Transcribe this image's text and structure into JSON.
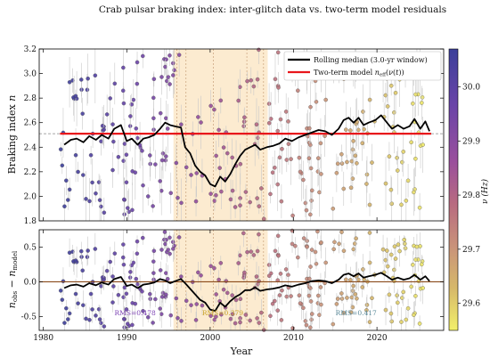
{
  "chart_data": {
    "type": "scatter",
    "title": "Crab pulsar braking index: inter-glitch data vs. two-term model residuals",
    "xlabel": "Year",
    "xlim": [
      1979.5,
      2028
    ],
    "xticks": [
      1980,
      1990,
      2000,
      2010,
      2020
    ],
    "shaded_interval": [
      1995.6,
      2006.9
    ],
    "glitch_lines": [
      1996.0,
      1997.1,
      2000.4,
      2004.4,
      2006.4
    ],
    "top_panel": {
      "ylabel": "Braking index n",
      "ylim": [
        1.8,
        3.2
      ],
      "yticks": [
        1.8,
        2.0,
        2.2,
        2.4,
        2.6,
        2.8,
        3.0,
        3.2
      ],
      "reference_line": 2.51,
      "model_line": 2.51,
      "legend": [
        {
          "label": "Rolling median (3.0-yr window)",
          "color": "#000000"
        },
        {
          "label": "Two-term model n_eff(ν(t))",
          "color": "#e8161b"
        }
      ],
      "rolling_median": [
        [
          1982.5,
          2.42
        ],
        [
          1983.3,
          2.46
        ],
        [
          1984.0,
          2.47
        ],
        [
          1984.8,
          2.44
        ],
        [
          1985.5,
          2.49
        ],
        [
          1986.3,
          2.46
        ],
        [
          1987.0,
          2.5
        ],
        [
          1987.8,
          2.47
        ],
        [
          1988.5,
          2.55
        ],
        [
          1989.3,
          2.58
        ],
        [
          1990.0,
          2.45
        ],
        [
          1990.6,
          2.47
        ],
        [
          1991.3,
          2.42
        ],
        [
          1992.0,
          2.47
        ],
        [
          1992.6,
          2.48
        ],
        [
          1993.3,
          2.5
        ],
        [
          1994.0,
          2.55
        ],
        [
          1994.6,
          2.6
        ],
        [
          1995.2,
          2.58
        ],
        [
          1995.8,
          2.57
        ],
        [
          1996.5,
          2.56
        ],
        [
          1997.0,
          2.4
        ],
        [
          1997.6,
          2.35
        ],
        [
          1998.2,
          2.25
        ],
        [
          1998.8,
          2.2
        ],
        [
          1999.4,
          2.17
        ],
        [
          2000.0,
          2.1
        ],
        [
          2000.6,
          2.08
        ],
        [
          2001.2,
          2.16
        ],
        [
          2001.8,
          2.12
        ],
        [
          2002.4,
          2.18
        ],
        [
          2003.0,
          2.26
        ],
        [
          2003.6,
          2.33
        ],
        [
          2004.2,
          2.38
        ],
        [
          2004.8,
          2.4
        ],
        [
          2005.4,
          2.42
        ],
        [
          2006.0,
          2.38
        ],
        [
          2006.8,
          2.4
        ],
        [
          2007.5,
          2.41
        ],
        [
          2008.3,
          2.43
        ],
        [
          2009.0,
          2.47
        ],
        [
          2009.8,
          2.45
        ],
        [
          2010.6,
          2.48
        ],
        [
          2011.4,
          2.5
        ],
        [
          2012.2,
          2.52
        ],
        [
          2013.0,
          2.54
        ],
        [
          2013.8,
          2.53
        ],
        [
          2014.6,
          2.5
        ],
        [
          2015.4,
          2.55
        ],
        [
          2016.0,
          2.62
        ],
        [
          2016.6,
          2.64
        ],
        [
          2017.2,
          2.6
        ],
        [
          2017.8,
          2.64
        ],
        [
          2018.4,
          2.58
        ],
        [
          2019.0,
          2.6
        ],
        [
          2019.8,
          2.62
        ],
        [
          2020.5,
          2.66
        ],
        [
          2021.2,
          2.6
        ],
        [
          2021.8,
          2.55
        ],
        [
          2022.5,
          2.58
        ],
        [
          2023.2,
          2.55
        ],
        [
          2023.9,
          2.57
        ],
        [
          2024.5,
          2.63
        ],
        [
          2025.2,
          2.55
        ],
        [
          2025.8,
          2.61
        ],
        [
          2026.3,
          2.53
        ]
      ]
    },
    "bottom_panel": {
      "ylabel": "n_obs − n_model",
      "ylim": [
        -0.7,
        0.75
      ],
      "yticks": [
        -0.5,
        0.0,
        0.5
      ],
      "zero_line": 0.0,
      "rms_labels": [
        {
          "text": "RMS=0.478",
          "x": 1991.0,
          "y": -0.48,
          "color": "#7a3fb2"
        },
        {
          "text": "RMS=0.379",
          "x": 2001.5,
          "y": -0.48,
          "color": "#c9a227"
        },
        {
          "text": "RMS=0.417",
          "x": 2017.5,
          "y": -0.48,
          "color": "#5a8a9a"
        }
      ],
      "rolling_median": [
        [
          1982.5,
          -0.09
        ],
        [
          1983.3,
          -0.05
        ],
        [
          1984.0,
          -0.04
        ],
        [
          1984.8,
          -0.07
        ],
        [
          1985.5,
          -0.02
        ],
        [
          1986.3,
          -0.05
        ],
        [
          1987.0,
          -0.01
        ],
        [
          1987.8,
          -0.04
        ],
        [
          1988.5,
          0.04
        ],
        [
          1989.3,
          0.07
        ],
        [
          1990.0,
          -0.06
        ],
        [
          1990.6,
          -0.04
        ],
        [
          1991.3,
          -0.09
        ],
        [
          1992.0,
          -0.04
        ],
        [
          1992.6,
          -0.03
        ],
        [
          1993.3,
          -0.01
        ],
        [
          1994.0,
          0.04
        ],
        [
          1994.6,
          0.02
        ],
        [
          1995.2,
          -0.02
        ],
        [
          1995.8,
          0.01
        ],
        [
          1996.5,
          0.04
        ],
        [
          1997.0,
          -0.02
        ],
        [
          1997.6,
          -0.1
        ],
        [
          1998.2,
          -0.18
        ],
        [
          1998.8,
          -0.26
        ],
        [
          1999.4,
          -0.3
        ],
        [
          2000.0,
          -0.4
        ],
        [
          2000.6,
          -0.42
        ],
        [
          2001.2,
          -0.3
        ],
        [
          2001.8,
          -0.36
        ],
        [
          2002.4,
          -0.28
        ],
        [
          2003.0,
          -0.22
        ],
        [
          2003.6,
          -0.18
        ],
        [
          2004.2,
          -0.12
        ],
        [
          2004.8,
          -0.12
        ],
        [
          2005.4,
          -0.08
        ],
        [
          2006.0,
          -0.13
        ],
        [
          2006.8,
          -0.11
        ],
        [
          2007.5,
          -0.1
        ],
        [
          2008.3,
          -0.08
        ],
        [
          2009.0,
          -0.05
        ],
        [
          2009.8,
          -0.07
        ],
        [
          2010.6,
          -0.04
        ],
        [
          2011.4,
          -0.02
        ],
        [
          2012.2,
          0.01
        ],
        [
          2013.0,
          0.02
        ],
        [
          2013.8,
          0.01
        ],
        [
          2014.6,
          -0.02
        ],
        [
          2015.4,
          0.03
        ],
        [
          2016.0,
          0.1
        ],
        [
          2016.6,
          0.12
        ],
        [
          2017.2,
          0.08
        ],
        [
          2017.8,
          0.12
        ],
        [
          2018.4,
          0.06
        ],
        [
          2019.0,
          0.08
        ],
        [
          2019.8,
          0.1
        ],
        [
          2020.5,
          0.13
        ],
        [
          2021.2,
          0.08
        ],
        [
          2021.8,
          0.03
        ],
        [
          2022.5,
          0.06
        ],
        [
          2023.2,
          0.03
        ],
        [
          2023.9,
          0.05
        ],
        [
          2024.5,
          0.1
        ],
        [
          2025.2,
          0.03
        ],
        [
          2025.8,
          0.08
        ],
        [
          2026.3,
          0.01
        ]
      ]
    },
    "colorbar": {
      "label": "ν (Hz)",
      "range": [
        29.55,
        30.07
      ],
      "ticks": [
        29.6,
        29.7,
        29.8,
        29.9,
        30.0
      ],
      "tick_labels": [
        "29.6",
        "29.7",
        "29.8",
        "29.9",
        "30.0"
      ],
      "colormap": "plasma-like (dark blue-purple at high ν, yellow at low ν)"
    },
    "scatter_points_note": "Hundreds of individual inter-glitch braking-index measurements with error bars, colored by spin frequency; rendered procedurally."
  },
  "colors": {
    "model_line": "#e8161b",
    "median_line": "#000000",
    "shade": "#fbe7c8",
    "glitch_line": "#c8a07a",
    "grid_dash": "#888888"
  }
}
